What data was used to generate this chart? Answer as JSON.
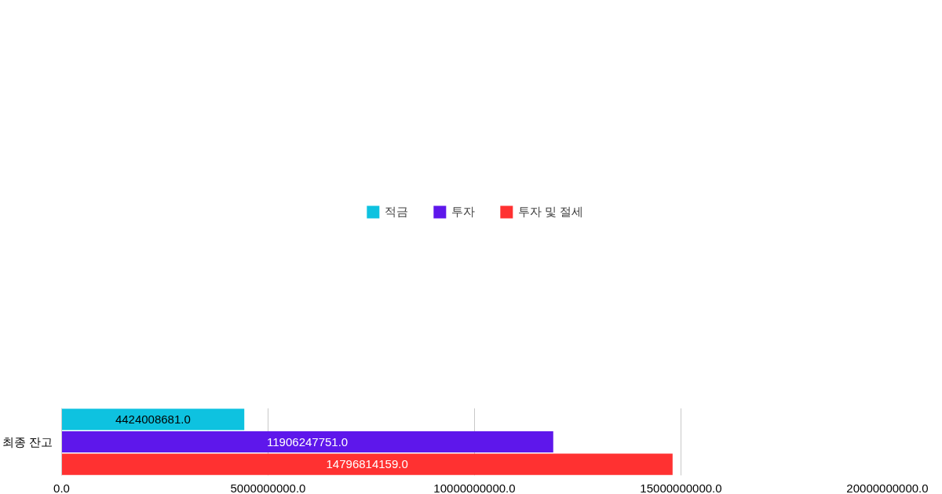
{
  "chart_data": {
    "type": "bar",
    "orientation": "horizontal",
    "categories": [
      "최종 잔고"
    ],
    "series": [
      {
        "name": "적금",
        "color": "#0ec2e0",
        "values": [
          4424008681
        ],
        "value_labels": [
          "4424008681.0"
        ]
      },
      {
        "name": "투자",
        "color": "#5e17eb",
        "values": [
          11906247751
        ],
        "value_labels": [
          "11906247751.0"
        ]
      },
      {
        "name": "투자 및 절세",
        "color": "#ff3131",
        "values": [
          14796814159
        ],
        "value_labels": [
          "14796814159.0"
        ]
      }
    ],
    "xlim": [
      0,
      20000000000
    ],
    "xticks": [
      {
        "value": 0,
        "label": "0.0"
      },
      {
        "value": 5000000000,
        "label": "5000000000.0"
      },
      {
        "value": 10000000000,
        "label": "10000000000.0"
      },
      {
        "value": 15000000000,
        "label": "15000000000.0"
      },
      {
        "value": 20000000000,
        "label": "20000000000.0"
      }
    ],
    "grid": "x",
    "legend": "top"
  }
}
